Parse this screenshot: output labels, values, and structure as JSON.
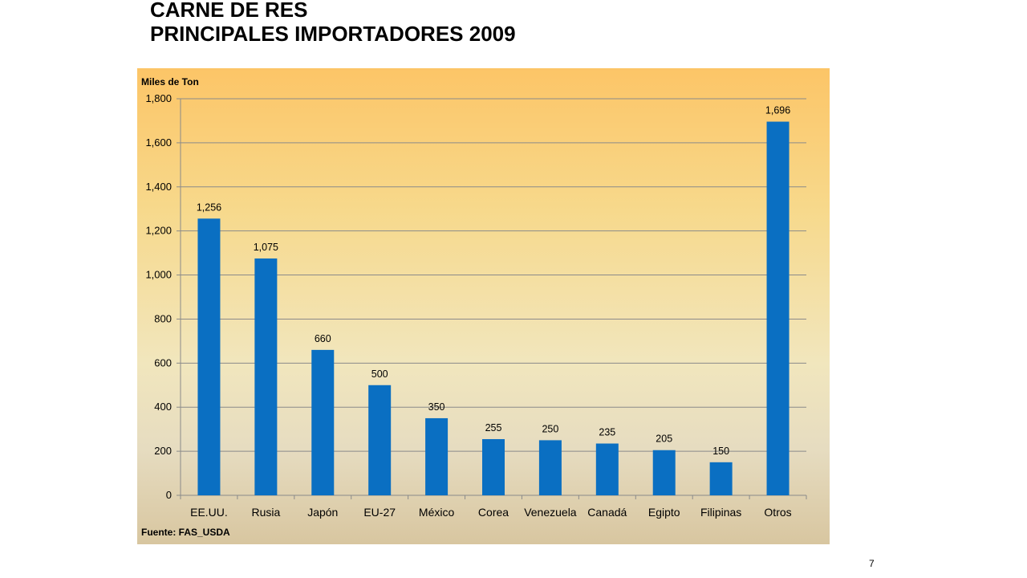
{
  "slide": {
    "title_line1": "CARNE DE RES",
    "title_line2": "PRINCIPALES IMPORTADORES 2009",
    "page_number": "7"
  },
  "chart_data": {
    "type": "bar",
    "ylabel": "Miles de Ton",
    "source": "Fuente: FAS_USDA",
    "categories": [
      "EE.UU.",
      "Rusia",
      "Japón",
      "EU-27",
      "México",
      "Corea",
      "Venezuela",
      "Canadá",
      "Egipto",
      "Filipinas",
      "Otros"
    ],
    "values": [
      1256,
      1075,
      660,
      500,
      350,
      255,
      250,
      235,
      205,
      150,
      1696
    ],
    "value_labels": [
      "1,256",
      "1,075",
      "660",
      "500",
      "350",
      "255",
      "250",
      "235",
      "205",
      "150",
      "1,696"
    ],
    "ylim": [
      0,
      1800
    ],
    "yticks": [
      0,
      200,
      400,
      600,
      800,
      1000,
      1200,
      1400,
      1600,
      1800
    ],
    "ytick_labels": [
      "0",
      "200",
      "400",
      "600",
      "800",
      "1,000",
      "1,200",
      "1,400",
      "1,600",
      "1,800"
    ],
    "grid": true,
    "legend": "none",
    "bar_color": "#0a6fc2"
  }
}
